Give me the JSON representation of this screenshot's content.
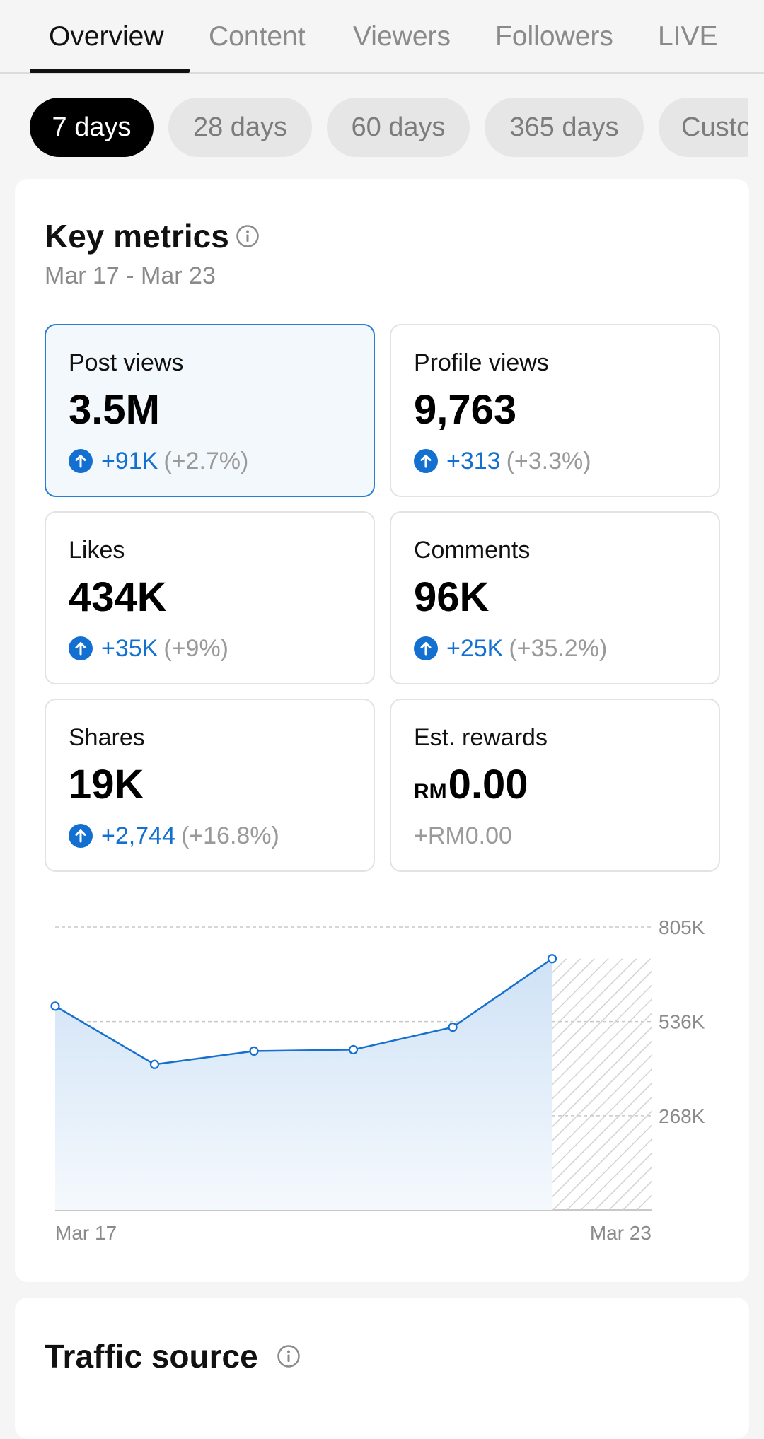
{
  "tabs": [
    {
      "label": "Overview",
      "active": true
    },
    {
      "label": "Content",
      "active": false
    },
    {
      "label": "Viewers",
      "active": false
    },
    {
      "label": "Followers",
      "active": false
    },
    {
      "label": "LIVE",
      "active": false
    }
  ],
  "date_chips": [
    {
      "label": "7 days",
      "active": true
    },
    {
      "label": "28 days",
      "active": false
    },
    {
      "label": "60 days",
      "active": false
    },
    {
      "label": "365 days",
      "active": false
    },
    {
      "label": "Custom",
      "active": false
    }
  ],
  "key_metrics": {
    "title": "Key metrics",
    "date_range": "Mar 17 - Mar 23",
    "metrics": [
      {
        "label": "Post views",
        "value": "3.5M",
        "delta": "+91K",
        "pct": "(+2.7%)",
        "selected": true
      },
      {
        "label": "Profile views",
        "value": "9,763",
        "delta": "+313",
        "pct": "(+3.3%)"
      },
      {
        "label": "Likes",
        "value": "434K",
        "delta": "+35K",
        "pct": "(+9%)"
      },
      {
        "label": "Comments",
        "value": "96K",
        "delta": "+25K",
        "pct": "(+35.2%)"
      },
      {
        "label": "Shares",
        "value": "19K",
        "delta": "+2,744",
        "pct": "(+16.8%)"
      },
      {
        "label": "Est. rewards",
        "currency": "RM",
        "value": "0.00",
        "change": "+RM0.00"
      }
    ]
  },
  "chart_data": {
    "type": "area",
    "x": [
      "Mar 17",
      "Mar 18",
      "Mar 19",
      "Mar 20",
      "Mar 21",
      "Mar 22",
      "Mar 23"
    ],
    "values": [
      580000,
      414000,
      452000,
      456000,
      520000,
      715000,
      null
    ],
    "y_ticks": [
      "805K",
      "536K",
      "268K"
    ],
    "y_tick_values": [
      805000,
      536000,
      268000
    ],
    "ylim": [
      0,
      805000
    ],
    "x_tick_labels": [
      "Mar 17",
      "Mar 23"
    ],
    "pending_day": "Mar 23",
    "grid": true,
    "colors": {
      "line": "#1570d0",
      "fill": "#d9e8f8",
      "grid": "#c8c8c8",
      "hatch": "#d0d0d0"
    }
  },
  "traffic_source": {
    "title": "Traffic source"
  },
  "colors": {
    "accent": "#1470d0",
    "selected_border": "#2a7fd4",
    "selected_bg": "#f3f8fc",
    "muted_text": "#8a8a8a"
  }
}
